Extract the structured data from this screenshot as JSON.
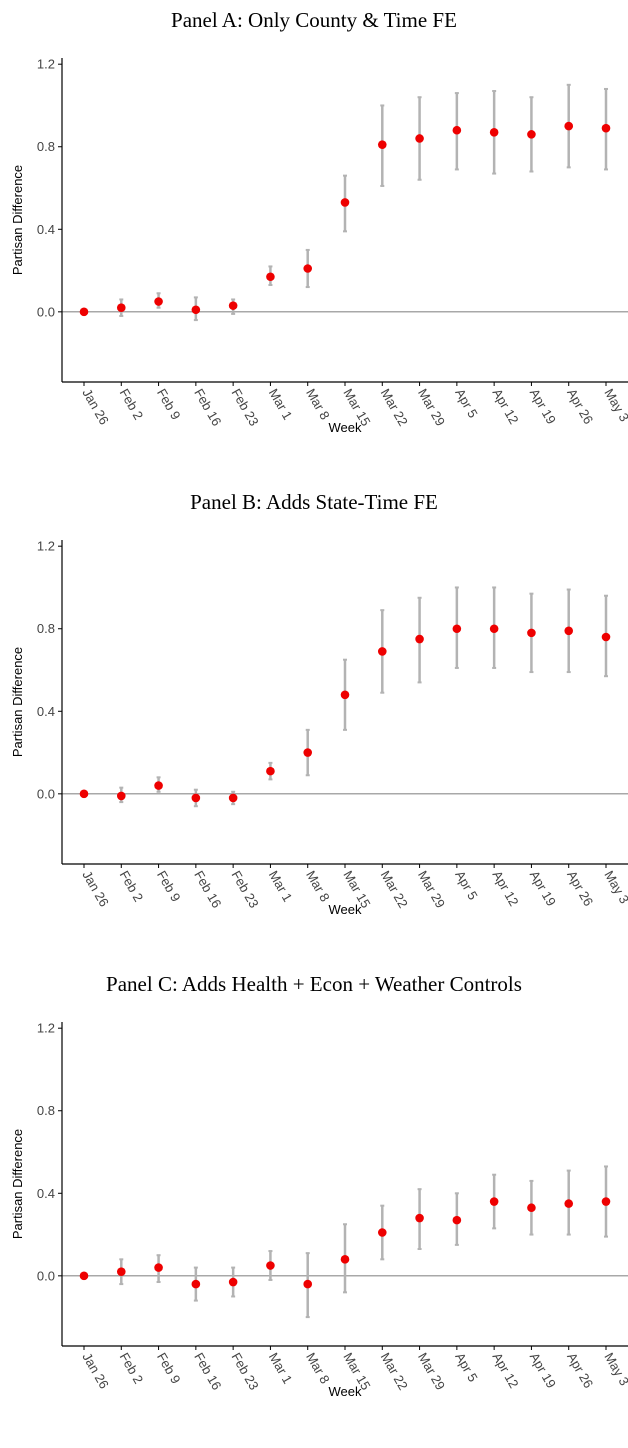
{
  "chart_data": [
    {
      "type": "scatter",
      "title": "Panel A: Only County & Time FE",
      "xlabel": "Week",
      "ylabel": "Partisan Difference",
      "categories": [
        "Jan 26",
        "Feb 2",
        "Feb 9",
        "Feb 16",
        "Feb 23",
        "Mar 1",
        "Mar 8",
        "Mar 15",
        "Mar 22",
        "Mar 29",
        "Apr 5",
        "Apr 12",
        "Apr 19",
        "Apr 26",
        "May 3"
      ],
      "yticks": [
        "0.0",
        "0.4",
        "0.8",
        "1.2"
      ],
      "ylim": [
        -0.34,
        1.23
      ],
      "zero_line": true,
      "series": [
        {
          "values": [
            0.0,
            0.02,
            0.05,
            0.01,
            0.03,
            0.17,
            0.21,
            0.53,
            0.81,
            0.84,
            0.88,
            0.87,
            0.86,
            0.9,
            0.89
          ],
          "lower": [
            0.0,
            -0.02,
            0.02,
            -0.04,
            -0.01,
            0.13,
            0.12,
            0.39,
            0.61,
            0.64,
            0.69,
            0.67,
            0.68,
            0.7,
            0.69
          ],
          "upper": [
            0.0,
            0.06,
            0.09,
            0.07,
            0.06,
            0.22,
            0.3,
            0.66,
            1.0,
            1.04,
            1.06,
            1.07,
            1.04,
            1.1,
            1.08
          ]
        }
      ]
    },
    {
      "type": "scatter",
      "title": "Panel B: Adds State-Time FE",
      "xlabel": "Week",
      "ylabel": "Partisan Difference",
      "categories": [
        "Jan 26",
        "Feb 2",
        "Feb 9",
        "Feb 16",
        "Feb 23",
        "Mar 1",
        "Mar 8",
        "Mar 15",
        "Mar 22",
        "Mar 29",
        "Apr 5",
        "Apr 12",
        "Apr 19",
        "Apr 26",
        "May 3"
      ],
      "yticks": [
        "0.0",
        "0.4",
        "0.8",
        "1.2"
      ],
      "ylim": [
        -0.34,
        1.23
      ],
      "zero_line": true,
      "series": [
        {
          "values": [
            0.0,
            -0.01,
            0.04,
            -0.02,
            -0.02,
            0.11,
            0.2,
            0.48,
            0.69,
            0.75,
            0.8,
            0.8,
            0.78,
            0.79,
            0.76
          ],
          "lower": [
            0.0,
            -0.04,
            0.01,
            -0.06,
            -0.05,
            0.07,
            0.09,
            0.31,
            0.49,
            0.54,
            0.61,
            0.61,
            0.59,
            0.59,
            0.57
          ],
          "upper": [
            0.0,
            0.03,
            0.08,
            0.02,
            0.01,
            0.15,
            0.31,
            0.65,
            0.89,
            0.95,
            1.0,
            1.0,
            0.97,
            0.99,
            0.96
          ]
        }
      ]
    },
    {
      "type": "scatter",
      "title": "Panel C: Adds Health + Econ + Weather Controls",
      "xlabel": "Week",
      "ylabel": "Partisan Difference",
      "categories": [
        "Jan 26",
        "Feb 2",
        "Feb 9",
        "Feb 16",
        "Feb 23",
        "Mar 1",
        "Mar 8",
        "Mar 15",
        "Mar 22",
        "Mar 29",
        "Apr 5",
        "Apr 12",
        "Apr 19",
        "Apr 26",
        "May 3"
      ],
      "yticks": [
        "0.0",
        "0.4",
        "0.8",
        "1.2"
      ],
      "ylim": [
        -0.34,
        1.23
      ],
      "zero_line": true,
      "series": [
        {
          "values": [
            0.0,
            0.02,
            0.04,
            -0.04,
            -0.03,
            0.05,
            -0.04,
            0.08,
            0.21,
            0.28,
            0.27,
            0.36,
            0.33,
            0.35,
            0.36
          ],
          "lower": [
            0.0,
            -0.04,
            -0.03,
            -0.12,
            -0.1,
            -0.02,
            -0.2,
            -0.08,
            0.08,
            0.13,
            0.15,
            0.23,
            0.2,
            0.2,
            0.19
          ],
          "upper": [
            0.0,
            0.08,
            0.1,
            0.04,
            0.04,
            0.12,
            0.11,
            0.25,
            0.34,
            0.42,
            0.4,
            0.49,
            0.46,
            0.51,
            0.53
          ]
        }
      ]
    }
  ],
  "colors": {
    "point": "#ee0000",
    "errorbar": "#b3b3b3",
    "zero_line": "#8c8c8c",
    "axis": "#000000",
    "tick_label": "#444444"
  }
}
